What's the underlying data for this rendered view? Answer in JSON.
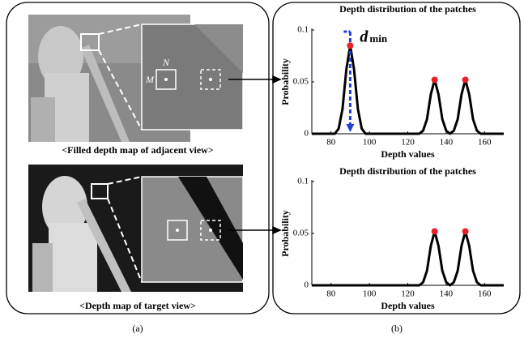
{
  "figure": {
    "left_panel": {
      "label": "(a)",
      "top_caption": "<Filled depth map of adjacent view>",
      "bottom_caption": "<Depth map of target view>",
      "inset_labels": [
        "M",
        "N"
      ]
    },
    "right_panel": {
      "label": "(b)"
    }
  },
  "chart_data": [
    {
      "type": "line",
      "title": "Depth distribution of the patches",
      "x_label": "Depth values",
      "y_label": "Probability",
      "x": [
        70,
        72,
        74,
        76,
        78,
        80,
        82,
        84,
        86,
        88,
        90,
        92,
        94,
        96,
        98,
        100,
        102,
        104,
        106,
        108,
        110,
        112,
        114,
        116,
        118,
        120,
        122,
        124,
        126,
        128,
        130,
        132,
        134,
        136,
        138,
        140,
        142,
        144,
        146,
        148,
        150,
        152,
        154,
        156,
        158,
        160,
        162,
        164,
        166,
        168,
        170
      ],
      "series": [
        {
          "color": "#000000",
          "values": [
            0,
            0,
            0,
            0,
            0,
            0,
            0,
            0.005,
            0.024,
            0.062,
            0.085,
            0.062,
            0.024,
            0.005,
            0,
            0,
            0,
            0,
            0,
            0,
            0,
            0,
            0,
            0,
            0,
            0,
            0,
            0,
            0,
            0.003,
            0.014,
            0.038,
            0.052,
            0.038,
            0.014,
            0.003,
            0,
            0.003,
            0.014,
            0.038,
            0.052,
            0.038,
            0.014,
            0.003,
            0,
            0,
            0,
            0,
            0,
            0,
            0
          ]
        }
      ],
      "peaks": {
        "color": "#e8202a",
        "x": [
          90,
          134,
          150
        ],
        "values": [
          0.085,
          0.052,
          0.052
        ]
      },
      "annotation": {
        "symbol": "d",
        "subscript": "min",
        "x": 90,
        "color": "#1f3fd6"
      },
      "xlim": [
        70,
        170
      ],
      "xticks": [
        80,
        100,
        120,
        140,
        160
      ],
      "ylim": [
        0,
        0.1
      ],
      "yticks": [
        0,
        0.05,
        0.1
      ]
    },
    {
      "type": "line",
      "title": "Depth distribution of the patches",
      "x_label": "Depth values",
      "y_label": "Probability",
      "x": [
        70,
        72,
        74,
        76,
        78,
        80,
        82,
        84,
        86,
        88,
        90,
        92,
        94,
        96,
        98,
        100,
        102,
        104,
        106,
        108,
        110,
        112,
        114,
        116,
        118,
        120,
        122,
        124,
        126,
        128,
        130,
        132,
        134,
        136,
        138,
        140,
        142,
        144,
        146,
        148,
        150,
        152,
        154,
        156,
        158,
        160,
        162,
        164,
        166,
        168,
        170
      ],
      "series": [
        {
          "color": "#000000",
          "values": [
            0,
            0,
            0,
            0,
            0,
            0,
            0,
            0,
            0,
            0,
            0,
            0,
            0,
            0,
            0,
            0,
            0,
            0,
            0,
            0,
            0,
            0,
            0,
            0,
            0,
            0,
            0,
            0,
            0,
            0.003,
            0.014,
            0.038,
            0.052,
            0.038,
            0.014,
            0.003,
            0,
            0.003,
            0.014,
            0.038,
            0.052,
            0.038,
            0.014,
            0.003,
            0,
            0,
            0,
            0,
            0,
            0,
            0
          ]
        }
      ],
      "peaks": {
        "color": "#e8202a",
        "x": [
          134,
          150
        ],
        "values": [
          0.052,
          0.052
        ]
      },
      "xlim": [
        70,
        170
      ],
      "xticks": [
        80,
        100,
        120,
        140,
        160
      ],
      "ylim": [
        0,
        0.1
      ],
      "yticks": [
        0,
        0.05,
        0.1
      ]
    }
  ]
}
